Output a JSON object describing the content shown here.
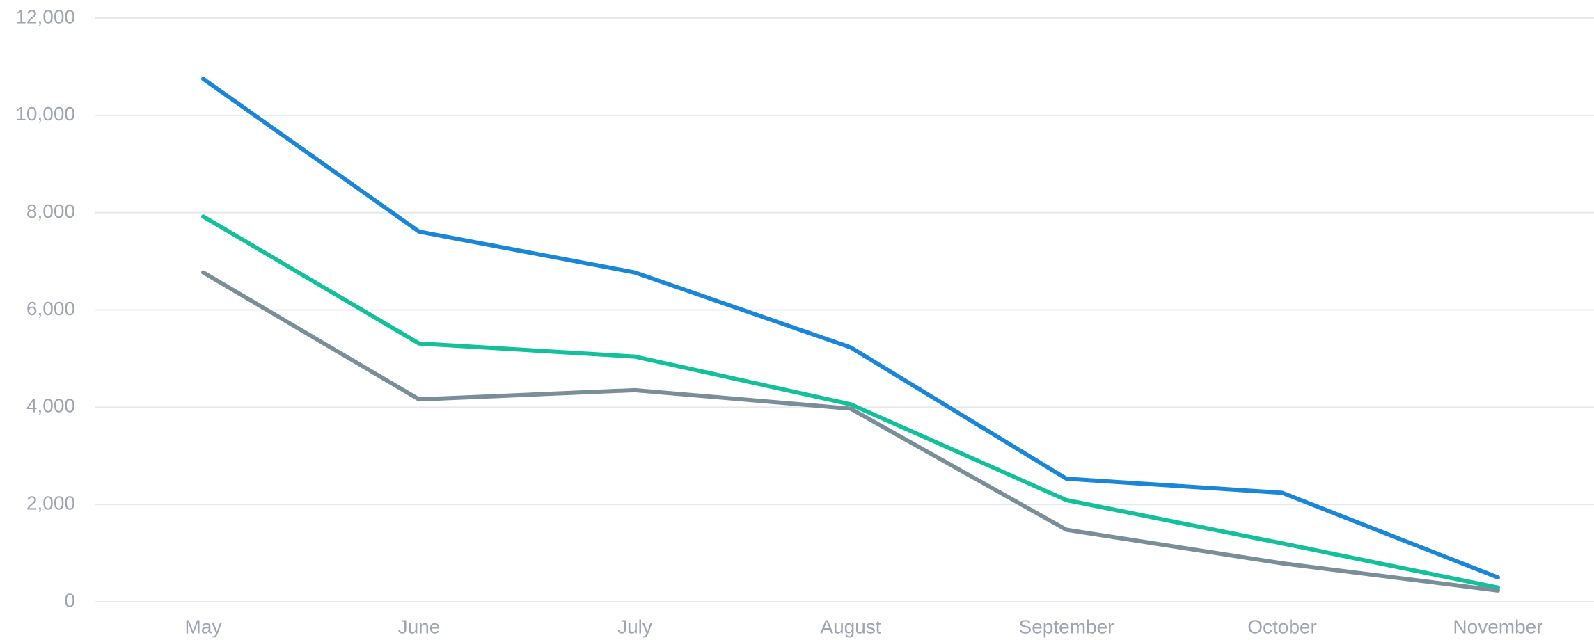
{
  "chart_data": {
    "type": "line",
    "categories": [
      "May",
      "June",
      "July",
      "August",
      "September",
      "October",
      "November"
    ],
    "series": [
      {
        "color": "#1a86d8",
        "values": [
          10750,
          7610,
          6770,
          5230,
          2530,
          2240,
          500
        ]
      },
      {
        "color": "#12c19c",
        "values": [
          7920,
          5310,
          5040,
          4060,
          2090,
          1200,
          290
        ]
      },
      {
        "color": "#7a8e99",
        "values": [
          6770,
          4160,
          4350,
          3970,
          1480,
          790,
          230
        ]
      }
    ],
    "ylim": [
      0,
      12000
    ],
    "yticks": [
      0,
      {
        "value": 2000,
        "label": "2,000"
      },
      {
        "value": 4000,
        "label": "4,000"
      },
      {
        "value": 6000,
        "label": "6,000"
      },
      {
        "value": 8000,
        "label": "8,000"
      },
      {
        "value": 10000,
        "label": "10,000"
      },
      {
        "value": 12000,
        "label": "12,000"
      }
    ],
    "grid": true
  }
}
